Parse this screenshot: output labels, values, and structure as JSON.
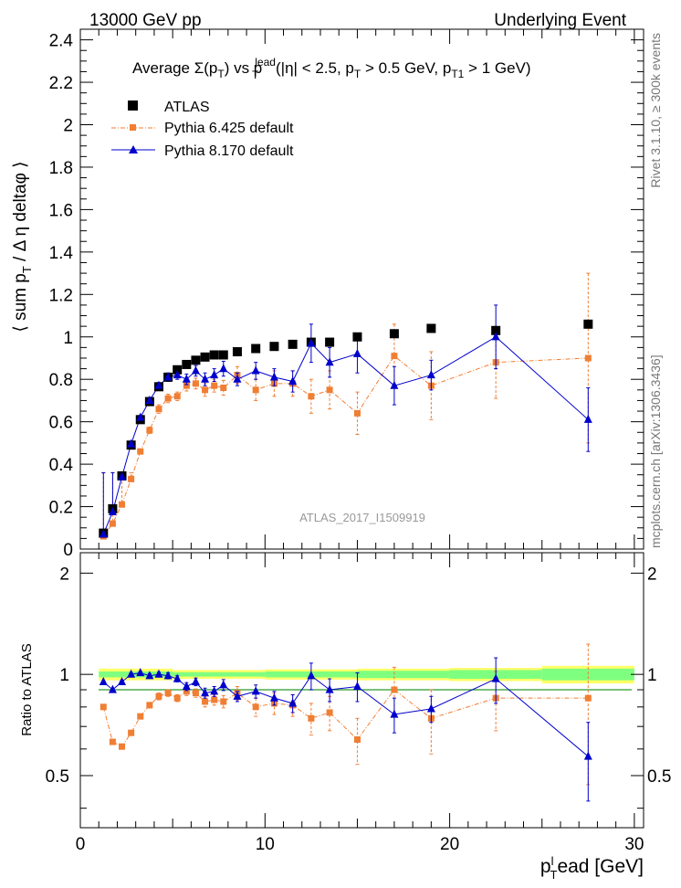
{
  "header": {
    "left": "13000 GeV pp",
    "right": "Underlying Event"
  },
  "side": {
    "rivet": "Rivet 3.1.10, ≥ 300k events",
    "mcplots": "mcplots.cern.ch [arXiv:1306.3436]"
  },
  "colors": {
    "atlas": "#000000",
    "pythia6": "#f07e33",
    "pythia8": "#0000cc",
    "band_inner": "#7fff7f",
    "band_outer": "#ffff66"
  },
  "chart_data": {
    "type": "scatter",
    "title": "Average Σ(p_T) vs p_T^lead (|η| < 2.5, p_T > 0.5 GeV, p_T1 > 1 GeV)",
    "title_parts": {
      "a": "Average ",
      "b": "Σ(p",
      "c": "T",
      "d": ") vs p",
      "e": "lead",
      "f": "T",
      "g": " (|η| < 2.5, p",
      "h": "T",
      "i": " > 0.5 GeV, p",
      "j": "T1",
      "k": " > 1 GeV)"
    },
    "ylabel": "⟨ sum p_T / Δ η deltaφ ⟩",
    "ylabel_parts": {
      "a": "⟨ sum p",
      "b": "T",
      "c": " / Δ η deltaφ ⟩"
    },
    "xlabel": "p_T^lead [GeV]",
    "xlabel_parts": {
      "a": "p",
      "b": "l",
      "c": "T",
      "d": "ead [GeV]"
    },
    "ratio_ylabel": "Ratio to ATLAS",
    "watermark": "ATLAS_2017_I1509919",
    "xlim": [
      0,
      30.5
    ],
    "ylim": [
      0,
      2.45
    ],
    "ratio_ylim": [
      0.35,
      2.3
    ],
    "x_ticks": [
      0,
      10,
      20,
      30
    ],
    "y_ticks": [
      0,
      0.2,
      0.4,
      0.6,
      0.8,
      1,
      1.2,
      1.4,
      1.6,
      1.8,
      2,
      2.2,
      2.4
    ],
    "y_tick_labels": [
      "0",
      "0.2",
      "0.4",
      "0.6",
      "0.8",
      "1",
      "1.2",
      "1.4",
      "1.6",
      "1.8",
      "2",
      "2.2",
      "2.4"
    ],
    "ratio_ticks": [
      0.5,
      1,
      2
    ],
    "ratio_tick_labels": [
      "0.5",
      "1",
      "2"
    ],
    "legend": [
      {
        "name": "ATLAS",
        "marker": "square"
      },
      {
        "name": "Pythia 6.425 default",
        "marker": "small-square"
      },
      {
        "name": "Pythia 8.170 default",
        "marker": "triangle"
      }
    ],
    "series": [
      {
        "name": "ATLAS",
        "x": [
          1.25,
          1.75,
          2.25,
          2.75,
          3.25,
          3.75,
          4.25,
          4.75,
          5.25,
          5.75,
          6.25,
          6.75,
          7.25,
          7.75,
          8.5,
          9.5,
          10.5,
          11.5,
          12.5,
          13.5,
          15.0,
          17.0,
          19.0,
          22.5,
          27.5
        ],
        "y": [
          0.075,
          0.19,
          0.345,
          0.49,
          0.61,
          0.695,
          0.765,
          0.81,
          0.845,
          0.87,
          0.89,
          0.905,
          0.915,
          0.915,
          0.93,
          0.945,
          0.955,
          0.965,
          0.975,
          0.975,
          1.0,
          1.015,
          1.04,
          1.03,
          1.06
        ]
      },
      {
        "name": "Pythia 6.425 default",
        "x": [
          1.25,
          1.75,
          2.25,
          2.75,
          3.25,
          3.75,
          4.25,
          4.75,
          5.25,
          5.75,
          6.25,
          6.75,
          7.25,
          7.75,
          8.5,
          9.5,
          10.5,
          11.5,
          12.5,
          13.5,
          15.0,
          17.0,
          19.0,
          22.5,
          27.5
        ],
        "y": [
          0.06,
          0.12,
          0.21,
          0.33,
          0.46,
          0.56,
          0.66,
          0.71,
          0.72,
          0.77,
          0.78,
          0.75,
          0.77,
          0.76,
          0.82,
          0.75,
          0.78,
          0.78,
          0.72,
          0.75,
          0.64,
          0.91,
          0.77,
          0.88,
          0.9
        ],
        "err": [
          0.01,
          0.01,
          0.01,
          0.01,
          0.01,
          0.015,
          0.02,
          0.02,
          0.02,
          0.025,
          0.025,
          0.03,
          0.03,
          0.035,
          0.04,
          0.05,
          0.06,
          0.06,
          0.08,
          0.09,
          0.1,
          0.15,
          0.16,
          0.17,
          0.4
        ]
      },
      {
        "name": "Pythia 8.170 default",
        "x": [
          1.25,
          1.75,
          2.25,
          2.75,
          3.25,
          3.75,
          4.25,
          4.75,
          5.25,
          5.75,
          6.25,
          6.75,
          7.25,
          7.75,
          8.5,
          9.5,
          10.5,
          11.5,
          12.5,
          13.5,
          15.0,
          17.0,
          19.0,
          22.5,
          27.5
        ],
        "y": [
          0.07,
          0.175,
          0.34,
          0.495,
          0.62,
          0.7,
          0.77,
          0.81,
          0.82,
          0.8,
          0.84,
          0.8,
          0.82,
          0.85,
          0.8,
          0.84,
          0.81,
          0.79,
          0.97,
          0.88,
          0.92,
          0.77,
          0.82,
          1.0,
          0.61
        ],
        "err": [
          0.005,
          0.005,
          0.01,
          0.01,
          0.01,
          0.015,
          0.015,
          0.02,
          0.02,
          0.025,
          0.025,
          0.03,
          0.03,
          0.035,
          0.03,
          0.04,
          0.04,
          0.05,
          0.09,
          0.07,
          0.09,
          0.09,
          0.07,
          0.15,
          0.15
        ]
      }
    ],
    "ratio_series": [
      {
        "name": "Pythia 6.425 default",
        "y": [
          0.8,
          0.63,
          0.61,
          0.67,
          0.75,
          0.81,
          0.86,
          0.88,
          0.85,
          0.89,
          0.88,
          0.83,
          0.84,
          0.83,
          0.88,
          0.8,
          0.82,
          0.81,
          0.74,
          0.77,
          0.64,
          0.9,
          0.74,
          0.85,
          0.85
        ],
        "err": [
          0.01,
          0.01,
          0.01,
          0.01,
          0.01,
          0.015,
          0.02,
          0.02,
          0.02,
          0.025,
          0.025,
          0.03,
          0.03,
          0.035,
          0.04,
          0.05,
          0.06,
          0.06,
          0.08,
          0.09,
          0.1,
          0.15,
          0.16,
          0.17,
          0.38
        ]
      },
      {
        "name": "Pythia 8.170 default",
        "y": [
          0.95,
          0.9,
          0.95,
          1.0,
          1.01,
          0.99,
          1.0,
          0.99,
          0.97,
          0.92,
          0.95,
          0.88,
          0.89,
          0.93,
          0.86,
          0.89,
          0.85,
          0.82,
          0.99,
          0.9,
          0.92,
          0.76,
          0.79,
          0.97,
          0.57
        ],
        "err": [
          0.005,
          0.005,
          0.01,
          0.01,
          0.01,
          0.015,
          0.015,
          0.02,
          0.02,
          0.025,
          0.025,
          0.03,
          0.03,
          0.035,
          0.03,
          0.04,
          0.04,
          0.05,
          0.09,
          0.07,
          0.09,
          0.09,
          0.07,
          0.15,
          0.15
        ]
      }
    ],
    "ratio_band": {
      "x_edges": [
        1,
        5,
        10,
        15,
        20,
        25,
        30
      ],
      "inner": [
        0.02,
        0.015,
        0.02,
        0.025,
        0.03,
        0.04
      ],
      "outer": [
        0.04,
        0.03,
        0.035,
        0.04,
        0.045,
        0.06
      ]
    }
  }
}
